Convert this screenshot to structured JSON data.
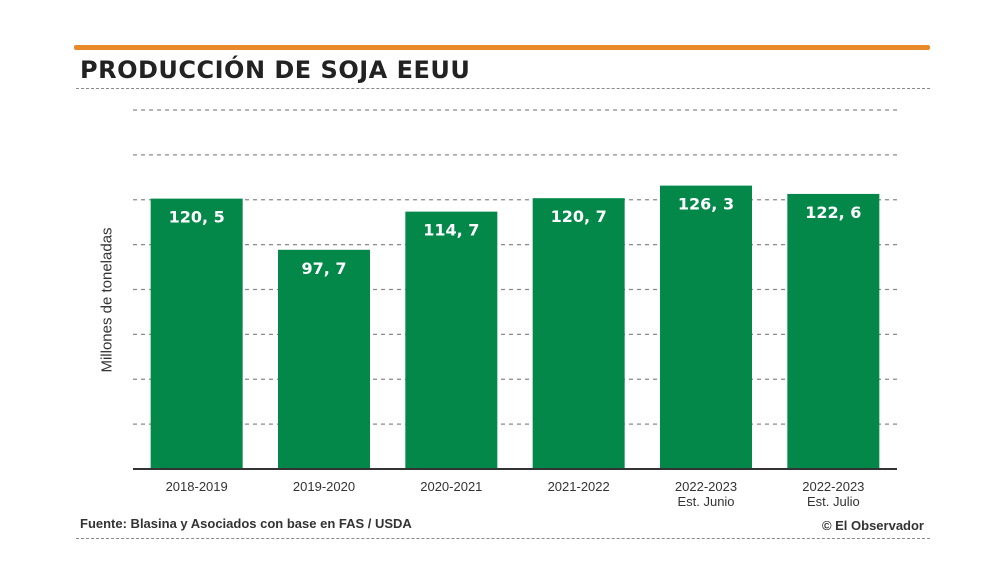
{
  "header": {
    "title": "PRODUCCIÓN DE SOJA EEUU"
  },
  "footer": {
    "source": "Fuente: Blasina y Asociados con base en FAS / USDA",
    "credit": "© El Observador"
  },
  "colors": {
    "bar": "#03884a",
    "accent_rule": "#e8892a",
    "grid": "#8a8a8a",
    "axis": "#333333",
    "bar_label": "#ffffff"
  },
  "chart_data": {
    "type": "bar",
    "title": "PRODUCCIÓN DE SOJA EEUU",
    "xlabel": "",
    "ylabel": "Millones de toneladas",
    "categories": [
      [
        "2018-2019"
      ],
      [
        "2019-2020"
      ],
      [
        "2020-2021"
      ],
      [
        "2021-2022"
      ],
      [
        "2022-2023",
        "Est. Junio"
      ],
      [
        "2022-2023",
        "Est. Julio"
      ]
    ],
    "values": [
      120.5,
      97.7,
      114.7,
      120.7,
      126.3,
      122.6
    ],
    "value_labels": [
      "120, 5",
      "97, 7",
      "114, 7",
      "120, 7",
      "126, 3",
      "122, 6"
    ],
    "ylim": [
      0,
      160
    ],
    "grid": true,
    "grid_style": "dashed",
    "y_tick_labels": false,
    "legend": "none"
  }
}
